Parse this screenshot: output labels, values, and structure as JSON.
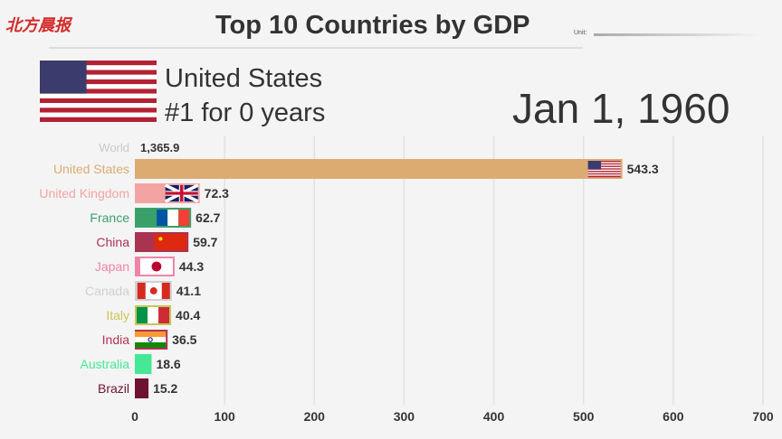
{
  "logo_text": "北方晨报",
  "chart_data": {
    "type": "bar",
    "title": "Top 10 Countries by GDP",
    "unit_label": "Unit:",
    "leader": {
      "name": "United States",
      "rank_text": "#1 for 0 years"
    },
    "date": "Jan 1, 1960",
    "total": {
      "label": "World",
      "value": 1365.9,
      "display": "1,365.9"
    },
    "categories": [
      "United States",
      "United Kingdom",
      "France",
      "China",
      "Japan",
      "Canada",
      "Italy",
      "India",
      "Australia",
      "Brazil"
    ],
    "values": [
      543.3,
      72.3,
      62.7,
      59.7,
      44.3,
      41.1,
      40.4,
      36.5,
      18.6,
      15.2
    ],
    "colors": [
      "#dcab72",
      "#f4a3a3",
      "#3aa06a",
      "#a83452",
      "#f283a6",
      "#d0d0d0",
      "#c9c55a",
      "#b33457",
      "#44e897",
      "#6e1232"
    ],
    "flags": [
      "us",
      "uk",
      "fr",
      "cn",
      "jp",
      "ca",
      "it",
      "in",
      "",
      ""
    ],
    "xlim": [
      0,
      700
    ],
    "xticks": [
      0,
      100,
      200,
      300,
      400,
      500,
      600,
      700
    ],
    "grid": true
  }
}
